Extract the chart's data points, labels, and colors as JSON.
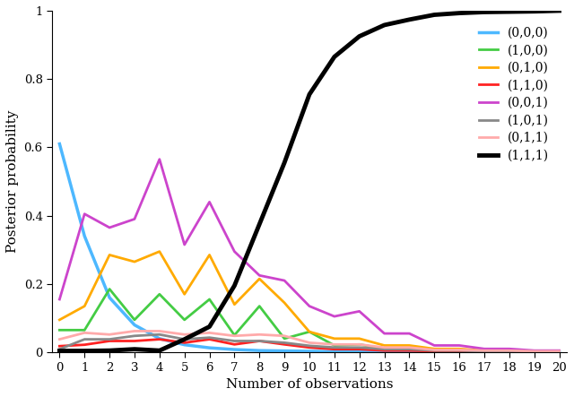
{
  "xlabel": "Number of observations",
  "ylabel": "Posterior probability",
  "xlim": [
    -0.3,
    20.3
  ],
  "ylim": [
    0,
    1.0
  ],
  "xticks": [
    0,
    1,
    2,
    3,
    4,
    5,
    6,
    7,
    8,
    9,
    10,
    11,
    12,
    13,
    14,
    15,
    16,
    17,
    18,
    19,
    20
  ],
  "yticks": [
    0,
    0.2,
    0.4,
    0.6,
    0.8,
    1
  ],
  "ytick_labels": [
    "0",
    "0.2",
    "0.4",
    "0.6",
    "0.8",
    "1"
  ],
  "series": [
    {
      "label": "(0,0,0)",
      "color": "#4db8ff",
      "linewidth": 2.5,
      "values": [
        0.61,
        0.34,
        0.16,
        0.08,
        0.04,
        0.022,
        0.013,
        0.008,
        0.005,
        0.004,
        0.003,
        0.002,
        0.002,
        0.001,
        0.001,
        0.001,
        0.001,
        0.001,
        0.001,
        0.001,
        0.001
      ]
    },
    {
      "label": "(1,0,0)",
      "color": "#44cc44",
      "linewidth": 2.0,
      "values": [
        0.065,
        0.065,
        0.185,
        0.095,
        0.17,
        0.095,
        0.155,
        0.05,
        0.135,
        0.04,
        0.06,
        0.02,
        0.023,
        0.01,
        0.01,
        0.005,
        0.005,
        0.003,
        0.003,
        0.002,
        0.002
      ]
    },
    {
      "label": "(0,1,0)",
      "color": "#ffaa00",
      "linewidth": 2.0,
      "values": [
        0.095,
        0.135,
        0.285,
        0.265,
        0.295,
        0.17,
        0.285,
        0.14,
        0.215,
        0.145,
        0.06,
        0.04,
        0.04,
        0.02,
        0.02,
        0.01,
        0.01,
        0.005,
        0.005,
        0.003,
        0.003
      ]
    },
    {
      "label": "(1,1,0)",
      "color": "#ff2222",
      "linewidth": 2.0,
      "values": [
        0.018,
        0.022,
        0.033,
        0.033,
        0.038,
        0.028,
        0.038,
        0.023,
        0.033,
        0.023,
        0.014,
        0.009,
        0.009,
        0.005,
        0.005,
        0.003,
        0.003,
        0.002,
        0.002,
        0.001,
        0.001
      ]
    },
    {
      "label": "(0,0,1)",
      "color": "#cc44cc",
      "linewidth": 2.0,
      "values": [
        0.155,
        0.405,
        0.365,
        0.39,
        0.565,
        0.315,
        0.44,
        0.295,
        0.225,
        0.21,
        0.135,
        0.105,
        0.12,
        0.055,
        0.055,
        0.02,
        0.02,
        0.01,
        0.01,
        0.005,
        0.005
      ]
    },
    {
      "label": "(1,0,1)",
      "color": "#888888",
      "linewidth": 2.0,
      "values": [
        0.009,
        0.038,
        0.038,
        0.048,
        0.052,
        0.038,
        0.043,
        0.033,
        0.033,
        0.028,
        0.019,
        0.014,
        0.014,
        0.009,
        0.009,
        0.005,
        0.005,
        0.003,
        0.003,
        0.002,
        0.002
      ]
    },
    {
      "label": "(0,1,1)",
      "color": "#ffaaaa",
      "linewidth": 2.0,
      "values": [
        0.038,
        0.057,
        0.052,
        0.062,
        0.062,
        0.052,
        0.057,
        0.048,
        0.052,
        0.048,
        0.028,
        0.023,
        0.023,
        0.014,
        0.014,
        0.007,
        0.007,
        0.005,
        0.005,
        0.003,
        0.003
      ]
    },
    {
      "label": "(1,1,1)",
      "color": "#000000",
      "linewidth": 3.5,
      "values": [
        0.004,
        0.004,
        0.005,
        0.009,
        0.005,
        0.038,
        0.075,
        0.195,
        0.375,
        0.555,
        0.755,
        0.865,
        0.925,
        0.958,
        0.974,
        0.988,
        0.993,
        0.996,
        0.997,
        0.998,
        1.0
      ]
    }
  ]
}
